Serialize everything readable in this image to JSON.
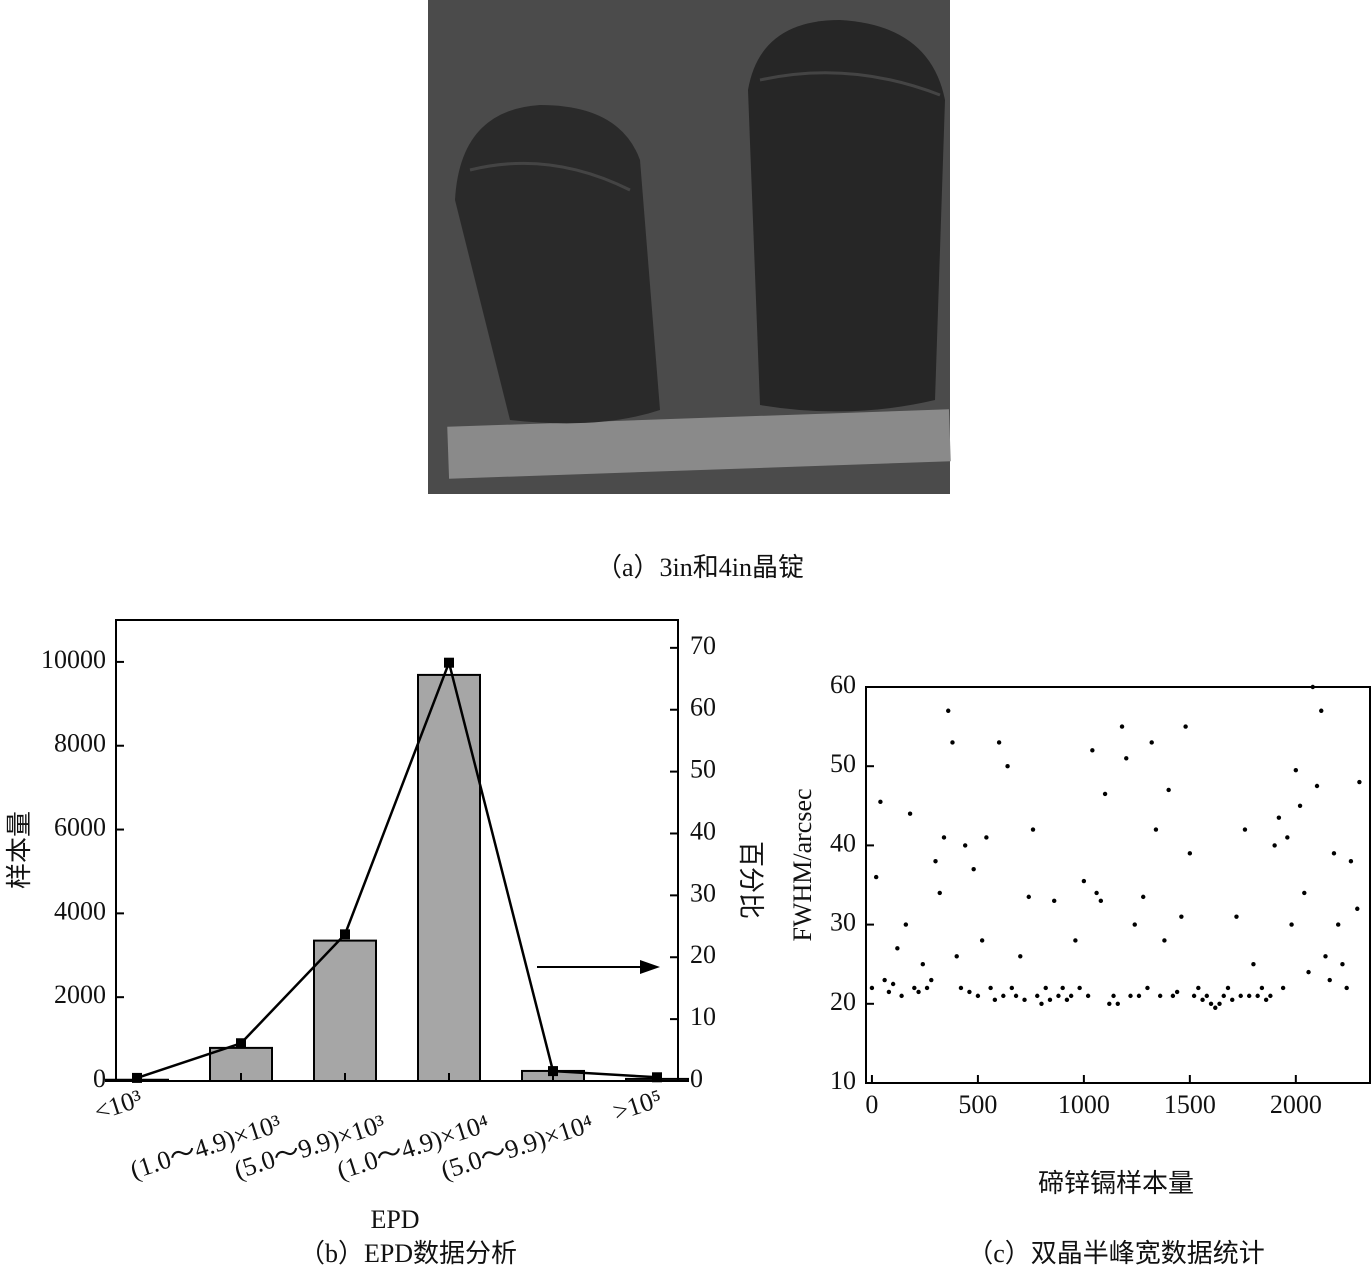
{
  "figure_a": {
    "caption": "（a）3in和4in晶锭"
  },
  "chart_data": [
    {
      "type": "bar",
      "caption": "（b）EPD数据分析",
      "x_label": "EPD",
      "y_label": "样本量",
      "y2_label": "百分比",
      "categories": [
        "<10³",
        "(1.0～4.9)×10³",
        "(5.0～9.9)×10³",
        "(1.0～4.9)×10⁴",
        "(5.0～9.9)×10⁴",
        ">10⁵"
      ],
      "series": [
        {
          "type": "bar",
          "color": "#a6a6a6",
          "values": [
            30,
            790,
            3350,
            9690,
            240,
            50
          ]
        },
        {
          "type": "line",
          "axis": "y2",
          "color": "#000000",
          "values": [
            0.5,
            6.1,
            23.7,
            67.6,
            1.6,
            0.6
          ]
        }
      ],
      "ylim": [
        0,
        11000
      ],
      "yticks": [
        0,
        2000,
        4000,
        6000,
        8000,
        10000
      ],
      "y2lim": [
        0,
        74.5
      ],
      "y2ticks": [
        0,
        10,
        20,
        30,
        40,
        50,
        60,
        70
      ]
    },
    {
      "type": "scatter",
      "caption": "（c）双晶半峰宽数据统计",
      "x_label": "碲锌镉样本量",
      "y_label": "FWHM/arcsec",
      "color": "#000000",
      "x": [
        0,
        20,
        40,
        60,
        80,
        100,
        120,
        140,
        160,
        180,
        200,
        220,
        240,
        260,
        280,
        300,
        320,
        340,
        360,
        380,
        400,
        420,
        440,
        460,
        480,
        500,
        520,
        540,
        560,
        580,
        600,
        620,
        640,
        660,
        680,
        700,
        720,
        740,
        760,
        780,
        800,
        820,
        840,
        860,
        880,
        900,
        920,
        940,
        960,
        980,
        1000,
        1020,
        1040,
        1060,
        1080,
        1100,
        1120,
        1140,
        1160,
        1180,
        1200,
        1220,
        1240,
        1260,
        1280,
        1300,
        1320,
        1340,
        1360,
        1380,
        1400,
        1420,
        1440,
        1460,
        1480,
        1500,
        1520,
        1540,
        1560,
        1580,
        1600,
        1620,
        1640,
        1660,
        1680,
        1700,
        1720,
        1740,
        1760,
        1780,
        1800,
        1820,
        1840,
        1860,
        1880,
        1900,
        1920,
        1940,
        1960,
        1980,
        2000,
        2020,
        2040,
        2060,
        2080,
        2100,
        2120,
        2140,
        2160,
        2180,
        2200,
        2220,
        2240,
        2260,
        2290,
        2300
      ],
      "values": [
        22,
        36,
        45.5,
        23,
        21.5,
        22.5,
        27,
        21,
        30,
        44,
        22,
        21.5,
        25,
        22,
        23,
        38,
        34,
        41,
        57,
        53,
        26,
        22,
        40,
        21.5,
        37,
        21,
        28,
        41,
        22,
        20.5,
        53,
        21,
        50,
        22,
        21,
        26,
        20.5,
        33.5,
        42,
        21,
        20,
        22,
        20.5,
        33,
        21,
        22,
        20.5,
        21,
        28,
        22,
        35.5,
        21,
        52,
        34,
        33,
        46.5,
        20,
        21,
        20,
        55,
        51,
        21,
        30,
        21,
        33.5,
        22,
        53,
        42,
        21,
        28,
        47,
        21,
        21.5,
        31,
        55,
        39,
        21,
        22,
        20.5,
        21,
        20,
        19.5,
        20,
        21,
        22,
        20.5,
        31,
        21,
        42,
        21,
        25,
        21,
        22,
        20.5,
        21,
        40,
        43.5,
        22,
        41,
        30,
        49.5,
        45,
        34,
        24,
        60,
        47.5,
        57,
        26,
        23,
        39,
        30,
        25,
        22,
        38,
        32,
        48
      ],
      "xlim": [
        -28,
        2350
      ],
      "xticks": [
        0,
        500,
        1000,
        1500,
        2000
      ],
      "ylim": [
        10,
        60
      ],
      "yticks": [
        10,
        20,
        30,
        40,
        50,
        60
      ]
    }
  ]
}
